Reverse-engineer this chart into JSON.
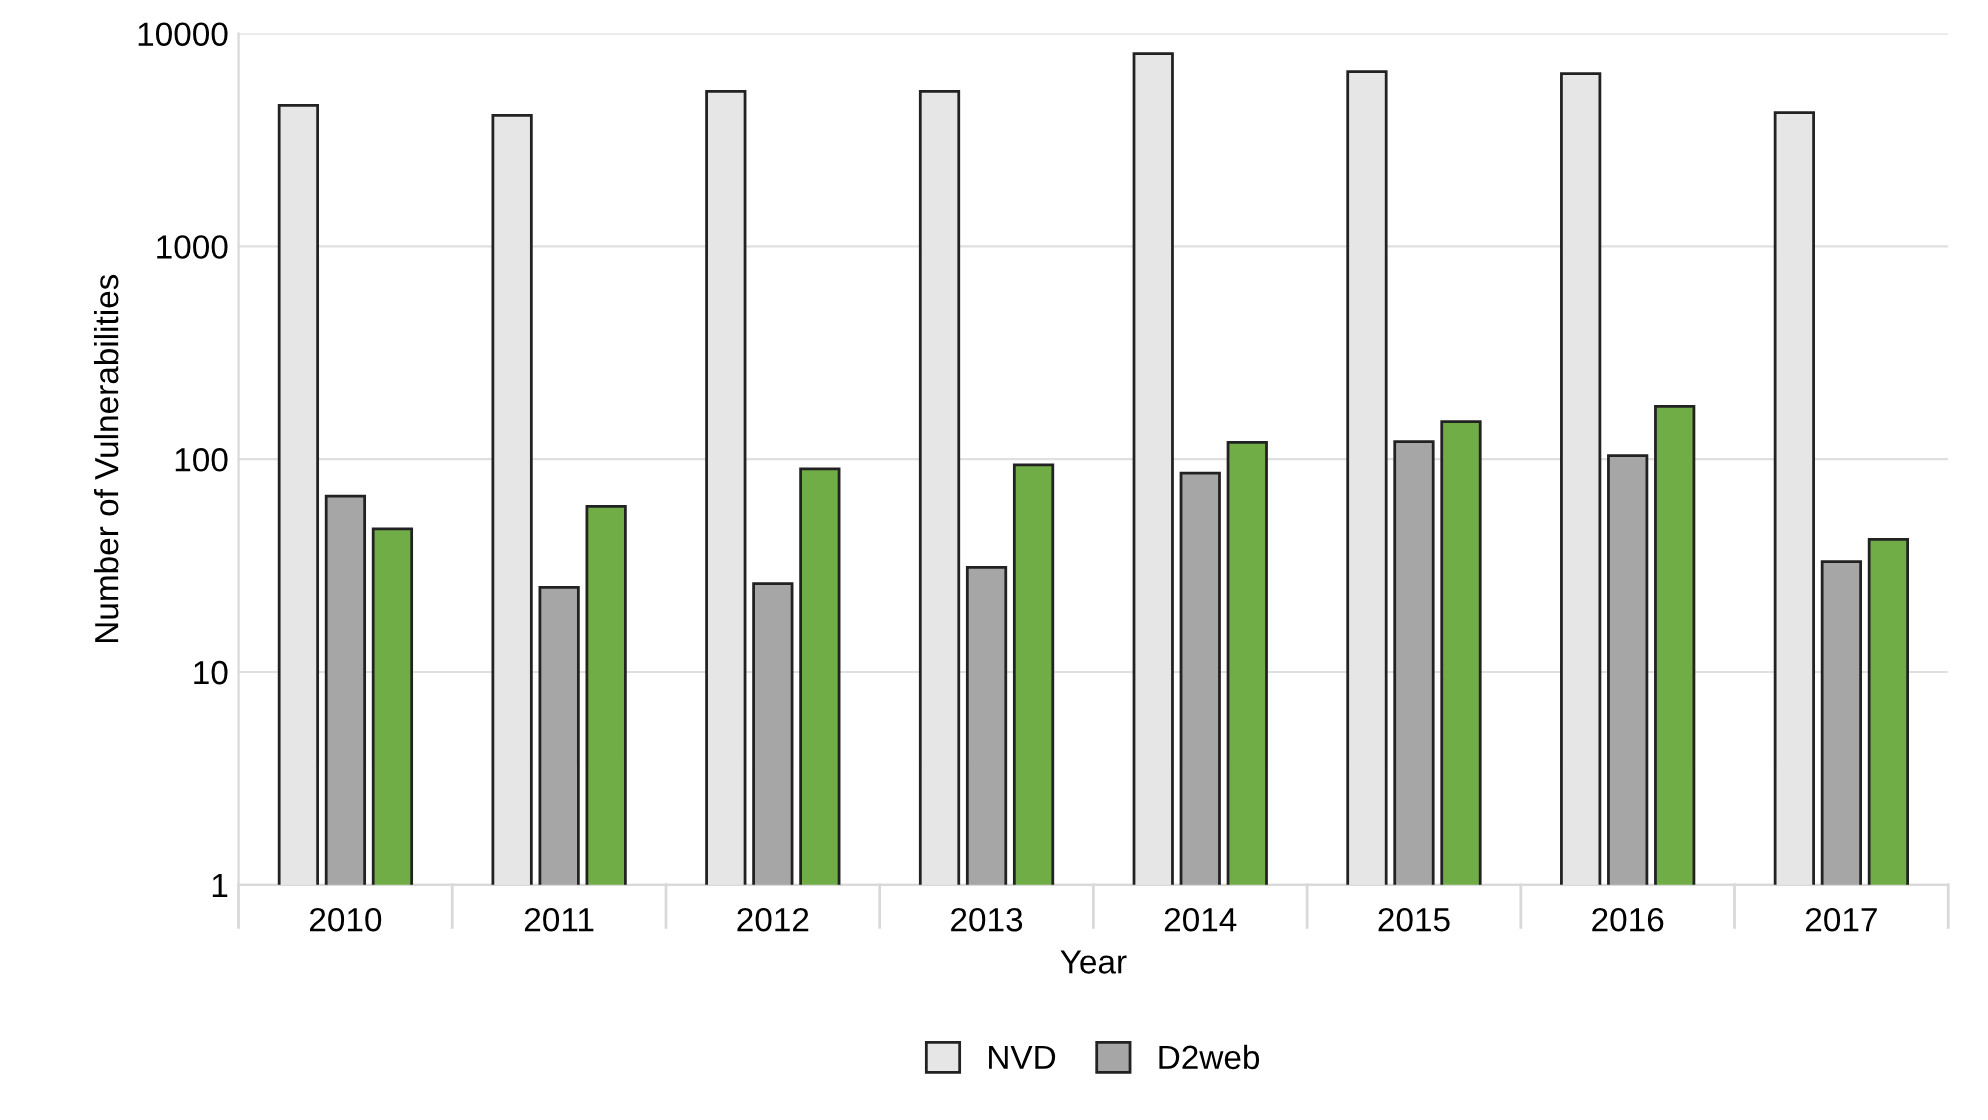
{
  "chart_data": {
    "type": "bar",
    "xlabel": "Year",
    "ylabel": "Number of Vulnerabilities",
    "categories": [
      "2010",
      "2011",
      "2012",
      "2013",
      "2014",
      "2015",
      "2016",
      "2017"
    ],
    "series": [
      {
        "name": "NVD",
        "color": "#e6e6e6",
        "values": [
          4600,
          4130,
          5350,
          5350,
          8060,
          6630,
          6490,
          4250
        ]
      },
      {
        "name": "D2web",
        "color": "#a6a6a6",
        "values": [
          67,
          25,
          26,
          31,
          86,
          121,
          104,
          33
        ]
      },
      {
        "color": "#70ad47",
        "values": [
          47,
          60,
          90,
          94,
          120,
          150,
          177,
          42
        ]
      }
    ],
    "log": true,
    "ylim": [
      1,
      10000
    ],
    "yticks": [
      1,
      10,
      100,
      1000,
      10000
    ],
    "grid": "y",
    "legend": "bottom"
  }
}
